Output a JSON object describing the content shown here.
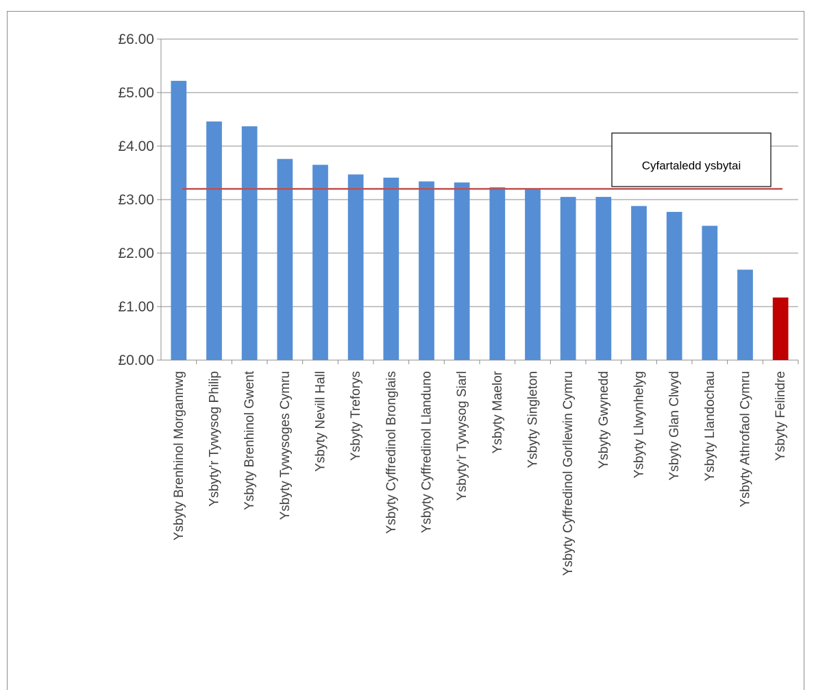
{
  "chart_data": {
    "type": "bar",
    "title": "",
    "xlabel": "",
    "ylabel": "",
    "ylim": [
      0,
      6
    ],
    "y_ticks": [
      "£0.00",
      "£1.00",
      "£2.00",
      "£3.00",
      "£4.00",
      "£5.00",
      "£6.00"
    ],
    "y_tick_values": [
      0,
      1,
      2,
      3,
      4,
      5,
      6
    ],
    "categories": [
      "Ysbyty Brenhinol Morgannwg",
      "Ysbyty'r Tywysog Philip",
      "Ysbyty Brenhinol Gwent",
      "Ysbyty Tywysoges Cymru",
      "Ysbyty Nevill Hall",
      "Ysbyty Treforys",
      "Ysbyty Cyffredinol Bronglais",
      "Ysbyty Cyffredinol Llanduno",
      "Ysbyty'r Tywysog Siarl",
      "Ysbyty Maelor",
      "Ysbyty Singleton",
      "Ysbyty Cyffredinol Gorllewin Cymru",
      "Ysbyty Gwynedd",
      "Ysbyty Llwynhelyg",
      "Ysbyty Glan Clwyd",
      "Ysbyty Llandochau",
      "Ysbyty Athrofaol Cymru",
      "Ysbyty Felindre"
    ],
    "values": [
      5.22,
      4.46,
      4.37,
      3.76,
      3.65,
      3.47,
      3.41,
      3.34,
      3.32,
      3.23,
      3.2,
      3.05,
      3.05,
      2.88,
      2.77,
      2.51,
      1.69,
      1.17
    ],
    "bar_colors": [
      "#558ed5",
      "#558ed5",
      "#558ed5",
      "#558ed5",
      "#558ed5",
      "#558ed5",
      "#558ed5",
      "#558ed5",
      "#558ed5",
      "#558ed5",
      "#558ed5",
      "#558ed5",
      "#558ed5",
      "#558ed5",
      "#558ed5",
      "#558ed5",
      "#558ed5",
      "#c00000"
    ],
    "reference_line": {
      "label": "Cyfartaledd ysbytai",
      "value": 3.2,
      "color": "#c0504d"
    },
    "grid": true,
    "legend": "none"
  }
}
